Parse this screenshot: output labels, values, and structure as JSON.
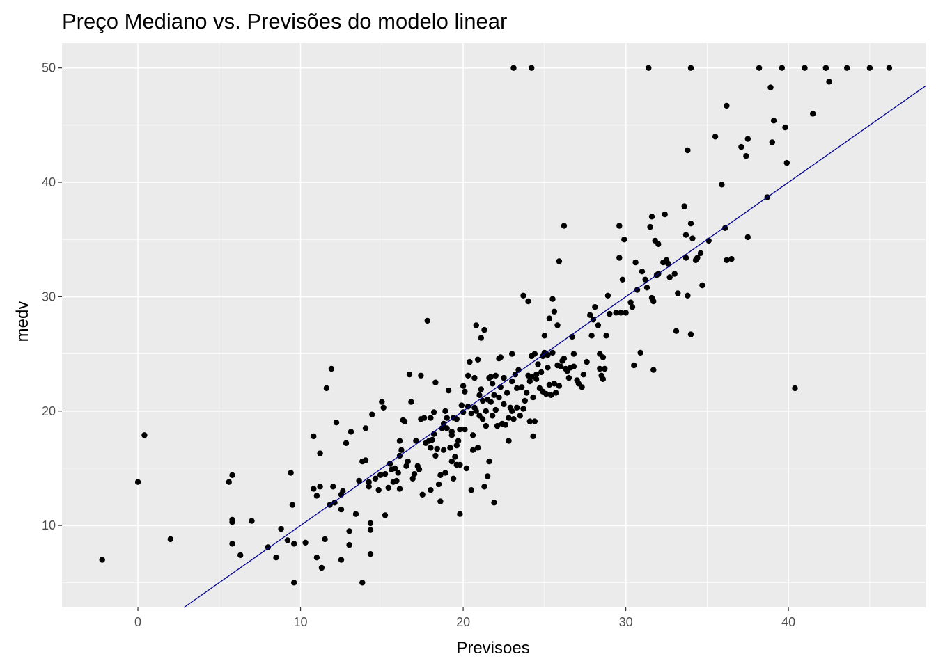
{
  "chart_data": {
    "type": "scatter",
    "title": "Preço Mediano vs. Previsões do modelo linear",
    "xlabel": "Previsoes",
    "ylabel": "medv",
    "xlim": [
      -4.67,
      48.43
    ],
    "ylim": [
      2.83,
      52.17
    ],
    "x_ticks": [
      0,
      10,
      20,
      30,
      40
    ],
    "y_ticks": [
      10,
      20,
      30,
      40,
      50
    ],
    "x_tick_labels": [
      "0",
      "10",
      "20",
      "30",
      "40"
    ],
    "y_tick_labels": [
      "10",
      "20",
      "30",
      "40",
      "50"
    ],
    "grid": true,
    "panel_background": "#ebebeb",
    "grid_color": "#ffffff",
    "point_color": "#000000",
    "line_color": "#00008b",
    "fit_line": {
      "intercept": 0,
      "slope": 1
    },
    "points": [
      [
        -2.2,
        7.0
      ],
      [
        0.0,
        13.8
      ],
      [
        0.4,
        17.9
      ],
      [
        2.0,
        8.8
      ],
      [
        5.6,
        13.8
      ],
      [
        5.8,
        14.4
      ],
      [
        5.8,
        10.5
      ],
      [
        5.8,
        10.3
      ],
      [
        5.8,
        8.4
      ],
      [
        6.3,
        7.4
      ],
      [
        7.0,
        10.4
      ],
      [
        8.0,
        8.1
      ],
      [
        8.5,
        7.2
      ],
      [
        8.8,
        9.7
      ],
      [
        9.2,
        8.7
      ],
      [
        9.4,
        14.6
      ],
      [
        9.5,
        11.8
      ],
      [
        9.6,
        8.4
      ],
      [
        9.6,
        5.0
      ],
      [
        10.3,
        8.5
      ],
      [
        10.8,
        17.8
      ],
      [
        10.8,
        13.2
      ],
      [
        11.0,
        12.6
      ],
      [
        11.0,
        7.2
      ],
      [
        11.2,
        13.4
      ],
      [
        11.2,
        16.3
      ],
      [
        11.3,
        6.3
      ],
      [
        11.5,
        8.8
      ],
      [
        11.6,
        22.0
      ],
      [
        11.8,
        11.8
      ],
      [
        11.9,
        23.7
      ],
      [
        12.0,
        13.4
      ],
      [
        12.1,
        12.0
      ],
      [
        12.2,
        19.0
      ],
      [
        12.5,
        12.7
      ],
      [
        12.5,
        11.4
      ],
      [
        12.5,
        7.0
      ],
      [
        12.6,
        13.0
      ],
      [
        12.8,
        17.2
      ],
      [
        13.0,
        9.5
      ],
      [
        13.0,
        8.3
      ],
      [
        13.1,
        18.2
      ],
      [
        13.4,
        11.0
      ],
      [
        13.6,
        13.9
      ],
      [
        13.8,
        15.6
      ],
      [
        13.8,
        5.0
      ],
      [
        14.0,
        18.5
      ],
      [
        14.0,
        15.7
      ],
      [
        14.2,
        13.4
      ],
      [
        14.2,
        13.8
      ],
      [
        14.3,
        10.2
      ],
      [
        14.3,
        9.6
      ],
      [
        14.3,
        7.5
      ],
      [
        14.4,
        19.7
      ],
      [
        14.6,
        14.1
      ],
      [
        14.8,
        13.1
      ],
      [
        14.9,
        14.4
      ],
      [
        15.0,
        20.8
      ],
      [
        15.1,
        20.3
      ],
      [
        15.2,
        14.5
      ],
      [
        15.2,
        10.9
      ],
      [
        15.4,
        13.3
      ],
      [
        15.5,
        15.4
      ],
      [
        15.6,
        14.9
      ],
      [
        15.7,
        13.8
      ],
      [
        15.8,
        15.0
      ],
      [
        15.9,
        13.9
      ],
      [
        16.0,
        14.6
      ],
      [
        16.1,
        13.2
      ],
      [
        16.1,
        17.4
      ],
      [
        16.1,
        16.1
      ],
      [
        16.2,
        16.6
      ],
      [
        16.3,
        19.2
      ],
      [
        16.4,
        19.1
      ],
      [
        16.5,
        15.2
      ],
      [
        16.6,
        15.6
      ],
      [
        16.7,
        23.2
      ],
      [
        16.8,
        20.8
      ],
      [
        16.9,
        14.1
      ],
      [
        17.0,
        14.5
      ],
      [
        17.1,
        17.4
      ],
      [
        17.2,
        15.2
      ],
      [
        17.3,
        14.9
      ],
      [
        17.4,
        19.3
      ],
      [
        17.4,
        23.1
      ],
      [
        17.5,
        12.7
      ],
      [
        17.6,
        19.4
      ],
      [
        17.7,
        17.2
      ],
      [
        17.8,
        27.9
      ],
      [
        17.9,
        17.4
      ],
      [
        18.0,
        19.4
      ],
      [
        18.0,
        16.8
      ],
      [
        18.0,
        13.1
      ],
      [
        18.1,
        17.5
      ],
      [
        18.2,
        19.9
      ],
      [
        18.2,
        18.0
      ],
      [
        18.3,
        16.1
      ],
      [
        18.3,
        22.5
      ],
      [
        18.4,
        16.7
      ],
      [
        18.5,
        13.6
      ],
      [
        18.6,
        12.1
      ],
      [
        18.6,
        14.4
      ],
      [
        18.7,
        18.5
      ],
      [
        18.8,
        18.9
      ],
      [
        18.8,
        16.6
      ],
      [
        18.9,
        20.0
      ],
      [
        18.9,
        14.6
      ],
      [
        19.0,
        19.4
      ],
      [
        19.0,
        18.5
      ],
      [
        19.1,
        21.8
      ],
      [
        19.2,
        16.8
      ],
      [
        19.3,
        18.2
      ],
      [
        19.3,
        15.6
      ],
      [
        19.3,
        17.9
      ],
      [
        19.4,
        19.4
      ],
      [
        19.4,
        14.1
      ],
      [
        19.5,
        16.0
      ],
      [
        19.6,
        19.3
      ],
      [
        19.6,
        17.0
      ],
      [
        19.6,
        15.3
      ],
      [
        19.7,
        17.4
      ],
      [
        19.8,
        18.4
      ],
      [
        19.8,
        11.0
      ],
      [
        19.8,
        15.3
      ],
      [
        19.9,
        20.5
      ],
      [
        20.0,
        19.9
      ],
      [
        20.0,
        22.2
      ],
      [
        20.1,
        18.4
      ],
      [
        20.1,
        21.7
      ],
      [
        20.2,
        15.0
      ],
      [
        20.3,
        23.1
      ],
      [
        20.3,
        20.4
      ],
      [
        20.4,
        24.3
      ],
      [
        20.5,
        19.8
      ],
      [
        20.5,
        13.1
      ],
      [
        20.6,
        16.6
      ],
      [
        20.6,
        17.9
      ],
      [
        20.7,
        20.3
      ],
      [
        20.7,
        22.9
      ],
      [
        20.8,
        27.5
      ],
      [
        20.8,
        20.0
      ],
      [
        20.9,
        24.5
      ],
      [
        20.9,
        16.8
      ],
      [
        21.0,
        21.4
      ],
      [
        21.0,
        19.6
      ],
      [
        21.1,
        21.9
      ],
      [
        21.1,
        26.4
      ],
      [
        21.2,
        19.3
      ],
      [
        21.2,
        20.9
      ],
      [
        21.3,
        27.1
      ],
      [
        21.3,
        13.4
      ],
      [
        21.4,
        20.0
      ],
      [
        21.4,
        18.7
      ],
      [
        21.5,
        21.0
      ],
      [
        21.5,
        14.3
      ],
      [
        21.6,
        15.6
      ],
      [
        21.6,
        22.9
      ],
      [
        21.7,
        23.0
      ],
      [
        21.7,
        20.8
      ],
      [
        21.8,
        19.6
      ],
      [
        21.8,
        22.4
      ],
      [
        21.9,
        21.4
      ],
      [
        21.9,
        12.0
      ],
      [
        22.0,
        23.1
      ],
      [
        22.0,
        20.1
      ],
      [
        22.1,
        18.7
      ],
      [
        22.2,
        24.6
      ],
      [
        22.2,
        21.2
      ],
      [
        22.3,
        24.7
      ],
      [
        22.3,
        22.1
      ],
      [
        22.4,
        18.9
      ],
      [
        22.5,
        20.6
      ],
      [
        22.5,
        22.9
      ],
      [
        22.6,
        18.8
      ],
      [
        22.7,
        21.6
      ],
      [
        22.8,
        19.4
      ],
      [
        22.8,
        17.4
      ],
      [
        22.9,
        20.3
      ],
      [
        23.0,
        22.6
      ],
      [
        23.0,
        25.0
      ],
      [
        23.0,
        20.0
      ],
      [
        23.1,
        19.3
      ],
      [
        23.1,
        50.0
      ],
      [
        23.2,
        23.2
      ],
      [
        23.3,
        22.0
      ],
      [
        23.3,
        20.3
      ],
      [
        23.4,
        23.6
      ],
      [
        23.5,
        19.6
      ],
      [
        23.6,
        22.1
      ],
      [
        23.7,
        20.2
      ],
      [
        23.7,
        30.1
      ],
      [
        23.8,
        20.9
      ],
      [
        23.9,
        21.6
      ],
      [
        24.0,
        23.1
      ],
      [
        24.0,
        29.6
      ],
      [
        24.1,
        19.1
      ],
      [
        24.1,
        22.6
      ],
      [
        24.2,
        24.8
      ],
      [
        24.2,
        23.0
      ],
      [
        24.2,
        50.0
      ],
      [
        24.3,
        21.2
      ],
      [
        24.3,
        17.8
      ],
      [
        24.4,
        25.0
      ],
      [
        24.4,
        19.1
      ],
      [
        24.5,
        22.8
      ],
      [
        24.5,
        23.2
      ],
      [
        24.6,
        24.1
      ],
      [
        24.7,
        22.0
      ],
      [
        24.8,
        23.4
      ],
      [
        24.9,
        21.7
      ],
      [
        24.9,
        24.8
      ],
      [
        25.0,
        26.6
      ],
      [
        25.0,
        25.1
      ],
      [
        25.1,
        21.5
      ],
      [
        25.2,
        24.9
      ],
      [
        25.2,
        23.8
      ],
      [
        25.3,
        22.3
      ],
      [
        25.3,
        28.1
      ],
      [
        25.4,
        21.4
      ],
      [
        25.5,
        29.8
      ],
      [
        25.5,
        25.1
      ],
      [
        25.6,
        22.4
      ],
      [
        25.6,
        28.7
      ],
      [
        25.7,
        21.6
      ],
      [
        25.8,
        24.0
      ],
      [
        25.8,
        27.5
      ],
      [
        25.9,
        22.2
      ],
      [
        25.9,
        33.1
      ],
      [
        26.0,
        23.9
      ],
      [
        26.1,
        24.4
      ],
      [
        26.2,
        24.6
      ],
      [
        26.2,
        36.2
      ],
      [
        26.3,
        23.7
      ],
      [
        26.4,
        23.5
      ],
      [
        26.5,
        22.9
      ],
      [
        26.6,
        23.8
      ],
      [
        26.7,
        26.5
      ],
      [
        26.8,
        25.0
      ],
      [
        26.8,
        23.9
      ],
      [
        27.0,
        22.7
      ],
      [
        27.1,
        22.4
      ],
      [
        27.3,
        22.1
      ],
      [
        27.4,
        23.2
      ],
      [
        27.6,
        24.3
      ],
      [
        27.8,
        28.4
      ],
      [
        27.9,
        26.6
      ],
      [
        28.0,
        28.0
      ],
      [
        28.1,
        29.1
      ],
      [
        28.3,
        27.5
      ],
      [
        28.4,
        25.0
      ],
      [
        28.4,
        23.7
      ],
      [
        28.5,
        23.1
      ],
      [
        28.6,
        22.8
      ],
      [
        28.6,
        24.7
      ],
      [
        28.7,
        23.7
      ],
      [
        28.8,
        26.6
      ],
      [
        28.9,
        30.1
      ],
      [
        29.0,
        28.5
      ],
      [
        29.4,
        28.6
      ],
      [
        29.6,
        36.2
      ],
      [
        29.6,
        33.4
      ],
      [
        29.7,
        28.6
      ],
      [
        29.8,
        31.5
      ],
      [
        29.9,
        35.0
      ],
      [
        30.0,
        28.6
      ],
      [
        30.3,
        29.5
      ],
      [
        30.4,
        29.1
      ],
      [
        30.5,
        24.0
      ],
      [
        30.6,
        33.0
      ],
      [
        30.7,
        30.6
      ],
      [
        30.9,
        25.1
      ],
      [
        31.0,
        32.2
      ],
      [
        31.2,
        31.5
      ],
      [
        31.3,
        30.8
      ],
      [
        31.4,
        50.0
      ],
      [
        31.5,
        36.1
      ],
      [
        31.6,
        37.0
      ],
      [
        31.6,
        29.9
      ],
      [
        31.7,
        23.6
      ],
      [
        31.7,
        29.6
      ],
      [
        31.8,
        34.9
      ],
      [
        31.9,
        31.9
      ],
      [
        32.0,
        32.0
      ],
      [
        32.0,
        34.6
      ],
      [
        32.3,
        33.0
      ],
      [
        32.4,
        37.2
      ],
      [
        32.5,
        33.2
      ],
      [
        32.6,
        32.9
      ],
      [
        32.7,
        31.7
      ],
      [
        33.0,
        32.0
      ],
      [
        33.1,
        27.0
      ],
      [
        33.2,
        30.3
      ],
      [
        33.6,
        37.9
      ],
      [
        33.7,
        35.4
      ],
      [
        33.7,
        33.4
      ],
      [
        33.8,
        30.1
      ],
      [
        33.8,
        42.8
      ],
      [
        34.0,
        36.4
      ],
      [
        34.1,
        35.1
      ],
      [
        34.0,
        26.7
      ],
      [
        34.0,
        50.0
      ],
      [
        34.3,
        33.2
      ],
      [
        34.4,
        33.4
      ],
      [
        34.6,
        33.8
      ],
      [
        34.7,
        31.0
      ],
      [
        35.1,
        34.9
      ],
      [
        35.5,
        44.0
      ],
      [
        35.9,
        39.8
      ],
      [
        36.1,
        36.0
      ],
      [
        36.2,
        33.2
      ],
      [
        36.2,
        46.7
      ],
      [
        36.5,
        33.3
      ],
      [
        37.1,
        43.1
      ],
      [
        37.4,
        42.3
      ],
      [
        37.5,
        43.8
      ],
      [
        37.5,
        35.2
      ],
      [
        38.2,
        50.0
      ],
      [
        38.7,
        38.7
      ],
      [
        38.9,
        48.3
      ],
      [
        39.0,
        43.5
      ],
      [
        39.1,
        45.4
      ],
      [
        39.6,
        50.0
      ],
      [
        39.8,
        44.8
      ],
      [
        39.9,
        41.7
      ],
      [
        40.4,
        22.0
      ],
      [
        41.0,
        50.0
      ],
      [
        41.5,
        46.0
      ],
      [
        42.3,
        50.0
      ],
      [
        42.3,
        50.0
      ],
      [
        42.5,
        48.8
      ],
      [
        43.6,
        50.0
      ],
      [
        45.0,
        50.0
      ],
      [
        46.2,
        50.0
      ]
    ]
  }
}
